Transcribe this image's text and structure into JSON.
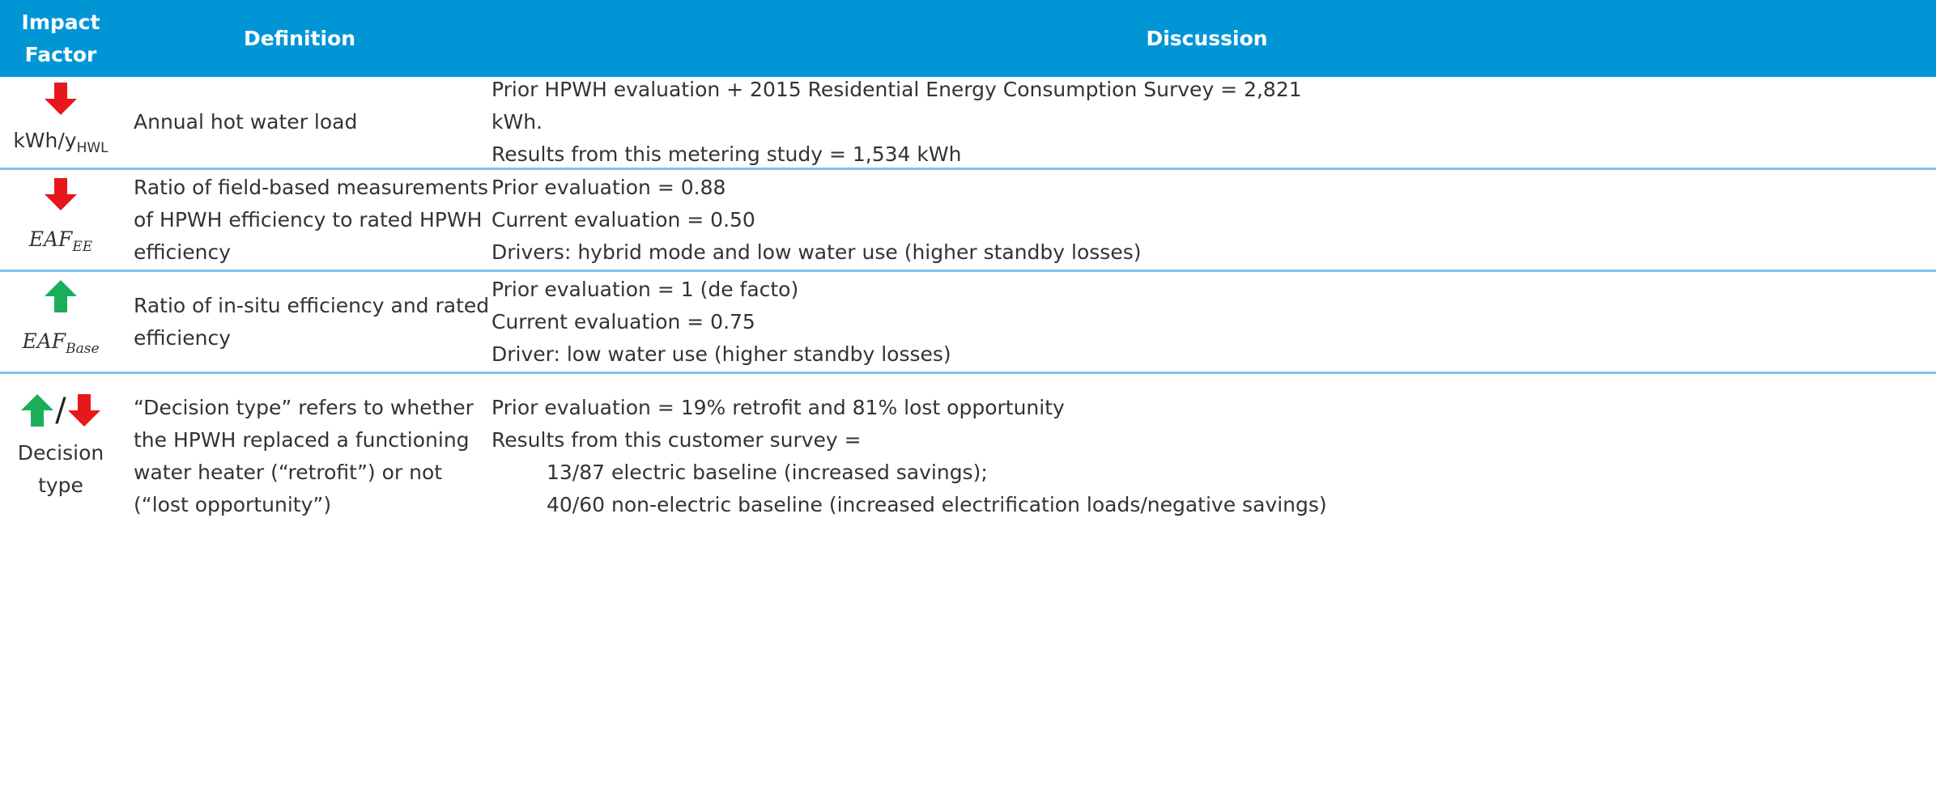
{
  "header": {
    "columns": [
      "Impact Factor",
      "Definition",
      "Discussion"
    ]
  },
  "rows": [
    {
      "factor": {
        "label": "kWh/y",
        "sub": "HWL"
      },
      "definition": [
        "Annual hot water load"
      ],
      "discussion": [
        "Prior HPWH evaluation + 2015 Residential Energy Consumption Survey = 2,821",
        "kWh.",
        "Results from this metering study = 1,534 kWh"
      ]
    },
    {
      "factor": {
        "label": "EAF",
        "sub": "EE"
      },
      "definition": [
        "Ratio of field-based measurements",
        "of HPWH efficiency to rated HPWH",
        "efficiency"
      ],
      "discussion": [
        "Prior evaluation = 0.88",
        "Current evaluation = 0.50",
        "Drivers: hybrid mode and low water use (higher standby losses)"
      ]
    },
    {
      "factor": {
        "label": "EAF",
        "sub": "Base"
      },
      "definition": [
        "Ratio of in-situ efficiency and rated",
        "efficiency"
      ],
      "discussion": [
        "Prior evaluation = 1 (de facto)",
        "Current evaluation = 0.75",
        "Driver: low water use (higher standby losses)"
      ]
    },
    {
      "factor": {
        "separator": "/",
        "label": "Decision",
        "label2": "type"
      },
      "definition": [
        "“Decision type” refers to whether",
        "the HPWH replaced a functioning",
        "water heater (“retrofit”) or not",
        "(“lost opportunity”)"
      ],
      "discussion": [
        "Prior evaluation = 19% retrofit and 81% lost opportunity",
        "Results from this customer survey =",
        "13/87 electric baseline (increased savings);",
        "40/60 non-electric baseline (increased electrification loads/negative savings)"
      ]
    }
  ]
}
